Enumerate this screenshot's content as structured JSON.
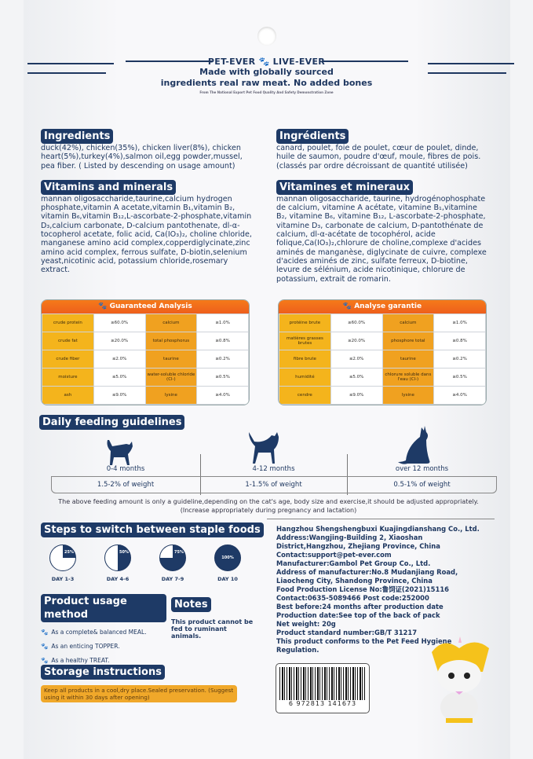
{
  "brand": {
    "slogan": "PET-EVER",
    "slogan2": "LIVE-EVER",
    "line1": "Made with globally sourced",
    "line2": "ingredients real raw meat. No added bones",
    "footnote": "From The National Export Pet Food Quality And Safety Demonstration Zone"
  },
  "en": {
    "ingredients_title": "Ingredients",
    "ingredients": "duck(42%), chicken(35%), chicken liver(8%), chicken heart(5%),turkey(4%),salmon oil,egg powder,mussel, pea fiber. ( Listed by descending on usage amount)",
    "vitamins_title": "Vitamins and minerals",
    "vitamins": "mannan oligosaccharide,taurine,calcium hydrogen phosphate,vitamin A acetate,vitamin B₁,vitamin B₂, vitamin B₆,vitamin B₁₂,L-ascorbate-2-phosphate,vitamin D₃,calcium carbonate, D-calcium pantothenate, dl-α-tocopherol acetate, folic acid, Ca(IO₃)₂, choline chloride, manganese amino acid complex,copperdiglycinate,zinc amino acid complex, ferrous sulfate, D-biotin,selenium yeast,nicotinic acid, potassium chloride,rosemary extract.",
    "analysis_title": "Guaranteed Analysis",
    "analysis": [
      [
        "crude protein",
        "≥60.0%",
        "calcium",
        "≥1.0%"
      ],
      [
        "crude fat",
        "≥20.0%",
        "total phosphorus",
        "≥0.8%"
      ],
      [
        "crude fiber",
        "≤2.0%",
        "taurine",
        "≥0.2%"
      ],
      [
        "moisture",
        "≤5.0%",
        "water-soluble chloride (Cl-)",
        "≥0.5%"
      ],
      [
        "ash",
        "≤9.0%",
        "lysine",
        "≥4.0%"
      ]
    ]
  },
  "fr": {
    "ingredients_title": "Ingrédients",
    "ingredients": "canard, poulet, foie de poulet, cœur de poulet, dinde, huile de saumon, poudre d'œuf, moule, fibres de pois. (classés par ordre décroissant de quantité utilisée)",
    "vitamins_title": "Vitamines et mineraux",
    "vitamins": "mannan oligosaccharide, taurine, hydrogénophosphate de calcium, vitamine A acétate, vitamine B₁,vitamine B₂, vitamine B₆, vitamine B₁₂, L-ascorbate-2-phosphate, vitamine D₃, carbonate de calcium, D-pantothénate de calcium, dl-α-acétate de tocophérol, acide folique,Ca(IO₃)₂,chlorure de choline,complexe d'acides aminés de manganèse, diglycinate de cuivre, complexe d'acides aminés de zinc, sulfate ferreux, D-biotine, levure de sélénium, acide nicotinique, chlorure de potassium, extrait de romarin.",
    "analysis_title": "Analyse garantie",
    "analysis": [
      [
        "protéine brute",
        "≥60.0%",
        "calcium",
        "≥1.0%"
      ],
      [
        "matières grasses brutes",
        "≥20.0%",
        "phosphore total",
        "≥0.8%"
      ],
      [
        "fibre brute",
        "≤2.0%",
        "taurine",
        "≥0.2%"
      ],
      [
        "humidité",
        "≤5.0%",
        "chlorure soluble dans l'eau (Cl-)",
        "≥0.5%"
      ],
      [
        "cendre",
        "≤9.0%",
        "lysine",
        "≥4.0%"
      ]
    ]
  },
  "feeding": {
    "title": "Daily feeding guidelines",
    "ages": [
      "0-4 months",
      "4-12 months",
      "over 12 months"
    ],
    "amounts": [
      "1.5-2% of weight",
      "1-1.5% of weight",
      "0.5-1% of weight"
    ],
    "note": "The above feeding amount is only a guideline,depending on the cat's age, body size and exercise,it should be adjusted appropriately. (Increase appropriately during pregnancy and lactation)"
  },
  "steps": {
    "title": "Steps to switch between staple foods",
    "items": [
      {
        "pct": "25%",
        "value": 25,
        "day": "DAY 1-3"
      },
      {
        "pct": "50%",
        "value": 50,
        "day": "DAY 4-6"
      },
      {
        "pct": "75%",
        "value": 75,
        "day": "DAY 7-9"
      },
      {
        "pct": "100%",
        "value": 100,
        "day": "DAY 10"
      }
    ]
  },
  "usage": {
    "title": "Product usage method",
    "items": [
      "As a complete& balanced MEAL.",
      "As an enticing TOPPER.",
      "As a healthy TREAT."
    ]
  },
  "notes": {
    "title": "Notes",
    "text": "This product cannot be fed to ruminant animals."
  },
  "storage": {
    "title": "Storage instructions",
    "text": "Keep all products in a cool,dry place.Sealed preservation. (Suggest using it within 30 days after opening)"
  },
  "info": [
    "Hangzhou Shengshengbuxi Kuajingdianshang Co., Ltd.",
    "Address:Wangjing-Building 2, Xiaoshan District,Hangzhou, Zhejiang Province, China",
    "Contact:support@pet-ever.com",
    "Manufacturer:Gambol Pet Group Co., Ltd.",
    "Address of manufacturer:No.8 Mudanjiang Road, Liaocheng City, Shandong Province, China",
    "Food Production License No:鲁饲证(2021)15116",
    "Contact:0635-5089466  Post code:252000",
    "Best before:24 months after production date",
    "Production date:See top of the back of pack",
    "Net weight: 20g",
    "Product standard number:GB/T 31217",
    "This product conforms to the Pet Feed Hygiene Regulation."
  ],
  "barcode": "6 972813 141673",
  "colors": {
    "navy": "#1e3a66",
    "orange": "#ee5f1c",
    "yellow": "#f4b41c"
  }
}
